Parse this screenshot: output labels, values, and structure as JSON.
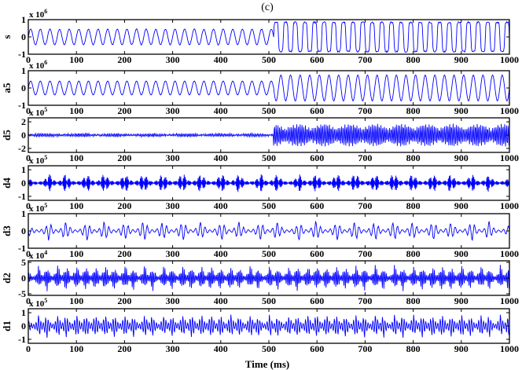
{
  "title": "(c)",
  "xlabel": "Time (ms)",
  "series_color": "#0000ff",
  "chart_data": [
    {
      "type": "line",
      "ylabel": "s",
      "multiplier": "x 10",
      "exponent": "6",
      "xlim": [
        0,
        1000
      ],
      "ylim": [
        -1,
        1
      ],
      "xticks": [
        0,
        100,
        200,
        300,
        400,
        500,
        600,
        700,
        800,
        900,
        1000
      ],
      "yticks": [
        -1,
        0,
        1
      ],
      "shape": {
        "kind": "square-switch",
        "switch_at": 510,
        "period1": 20,
        "period2": 20,
        "amp1": 0.45,
        "amp2": 0.85,
        "noise": 0.04
      }
    },
    {
      "type": "line",
      "ylabel": "a5",
      "multiplier": "x 10",
      "exponent": "6",
      "xlim": [
        0,
        1000
      ],
      "ylim": [
        -1,
        1
      ],
      "xticks": [
        0,
        100,
        200,
        300,
        400,
        500,
        600,
        700,
        800,
        900,
        1000
      ],
      "yticks": [
        -1,
        0,
        1
      ],
      "shape": {
        "kind": "sine-switch",
        "switch_at": 510,
        "period1": 20,
        "period2": 20,
        "amp1": 0.4,
        "amp2": 0.75,
        "noise": 0.0
      }
    },
    {
      "type": "line",
      "ylabel": "d5",
      "multiplier": "x 10",
      "exponent": "5",
      "xlim": [
        0,
        1000
      ],
      "ylim": [
        -2.6,
        2.6
      ],
      "xticks": [
        0,
        100,
        200,
        300,
        400,
        500,
        600,
        700,
        800,
        900,
        1000
      ],
      "yticks": [
        -2,
        0,
        2
      ],
      "shape": {
        "kind": "burst-switch",
        "switch_at": 510,
        "amp1": 0.25,
        "amp2": 1.7,
        "freq": 0.28,
        "noise": 0.15
      }
    },
    {
      "type": "line",
      "ylabel": "d4",
      "multiplier": "x 10",
      "exponent": "5",
      "xlim": [
        0,
        1000
      ],
      "ylim": [
        -1.3,
        1.3
      ],
      "xticks": [
        0,
        100,
        200,
        300,
        400,
        500,
        600,
        700,
        800,
        900,
        1000
      ],
      "yticks": [
        -1,
        0,
        1
      ],
      "shape": {
        "kind": "bursts",
        "spacing": 40,
        "width": 8,
        "amp": 0.45,
        "base": 0.07,
        "freq": 0.55
      }
    },
    {
      "type": "line",
      "ylabel": "d3",
      "multiplier": "x 10",
      "exponent": "5",
      "xlim": [
        0,
        1000
      ],
      "ylim": [
        -1,
        1
      ],
      "xticks": [
        0,
        100,
        200,
        300,
        400,
        500,
        600,
        700,
        800,
        900,
        1000
      ],
      "yticks": [
        -1,
        0,
        1
      ],
      "shape": {
        "kind": "bursts",
        "spacing": 40,
        "width": 7,
        "amp": 0.35,
        "base": 0.05,
        "freq": 0.9
      }
    },
    {
      "type": "line",
      "ylabel": "d2",
      "multiplier": "x 10",
      "exponent": "4",
      "xlim": [
        0,
        1000
      ],
      "ylim": [
        -5.5,
        5.5
      ],
      "xticks": [
        0,
        100,
        200,
        300,
        400,
        500,
        600,
        700,
        800,
        900,
        1000
      ],
      "yticks": [
        -5,
        0,
        5
      ],
      "shape": {
        "kind": "bursts",
        "spacing": 20,
        "width": 5,
        "amp": 2.6,
        "base": 0.3,
        "freq": 1.3
      }
    },
    {
      "type": "line",
      "ylabel": "d1",
      "multiplier": "x 10",
      "exponent": "5",
      "xlim": [
        0,
        1000
      ],
      "ylim": [
        -1.3,
        1.3
      ],
      "xticks": [
        0,
        100,
        200,
        300,
        400,
        500,
        600,
        700,
        800,
        900,
        1000
      ],
      "yticks": [
        -1,
        0,
        1
      ],
      "shape": {
        "kind": "bursts",
        "spacing": 20,
        "width": 5,
        "amp": 0.55,
        "base": 0.08,
        "freq": 2.2
      }
    }
  ]
}
